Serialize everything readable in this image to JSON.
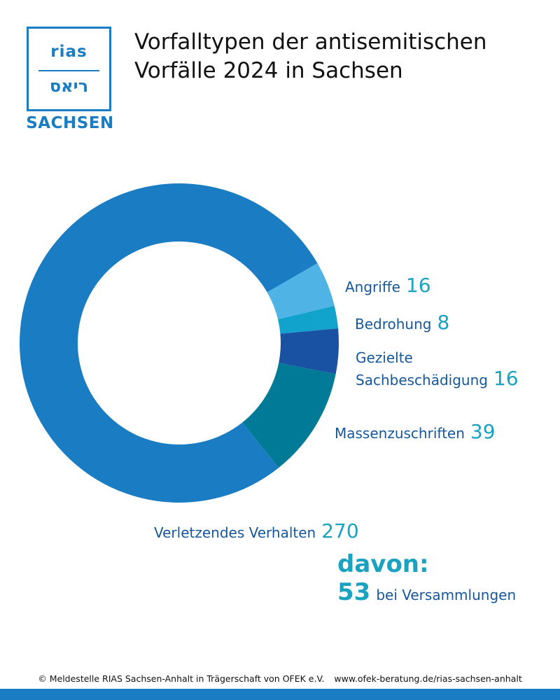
{
  "logo": {
    "latin": "rias",
    "hebrew": "ריאס",
    "region": "SACHSEN"
  },
  "title_line1": "Vorfalltypen der antisemitischen",
  "title_line2": "Vorfälle 2024 in Sachsen",
  "chart_data": {
    "type": "pie",
    "title": "Vorfalltypen der antisemitischen Vorfälle 2024 in Sachsen",
    "categories": [
      "Angriffe",
      "Bedrohung",
      "Gezielte Sachbeschädigung",
      "Massenzuschriften",
      "Verletzendes Verhalten"
    ],
    "values": [
      16,
      8,
      16,
      39,
      270
    ],
    "colors": [
      "#4fb3e6",
      "#12a3cc",
      "#1a52a3",
      "#017a97",
      "#1a7dc4"
    ],
    "labels": {
      "angriffe": "Angriffe",
      "bedrohung": "Bedrohung",
      "sach_line1": "Gezielte",
      "sach_line2": "Sachbeschädigung",
      "massen": "Massenzuschriften",
      "verletz": "Verletzendes Verhalten"
    },
    "value_labels": {
      "angriffe": "16",
      "bedrohung": "8",
      "sach": "16",
      "massen": "39",
      "verletz": "270"
    },
    "subset_note": {
      "label": "davon:",
      "value": "53",
      "text": "bei Versammlungen"
    }
  },
  "footer": {
    "copyright": "© Meldestelle RIAS Sachsen-Anhalt in Trägerschaft von OFEK e.V.",
    "url": "www.ofek-beratung.de/rias-sachsen-anhalt"
  }
}
